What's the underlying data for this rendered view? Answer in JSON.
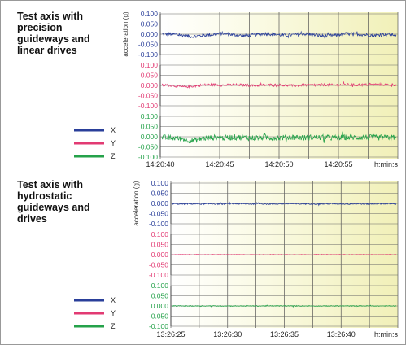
{
  "panels": [
    {
      "title": "Test axis with\nprecision\nguideways and\nlinear drives",
      "ylabel": "acceleration (g)",
      "legend": [
        {
          "label": "X",
          "color": "#2a3f9a"
        },
        {
          "label": "Y",
          "color": "#e23a73"
        },
        {
          "label": "Z",
          "color": "#25a24a"
        }
      ],
      "x_ticks": [
        "14:20:40",
        "14:20:45",
        "14:20:50",
        "14:20:55",
        "h:min:s"
      ]
    },
    {
      "title": "Test axis with\nhydrostatic\nguideways and\ndrives",
      "ylabel": "acceleration (g)",
      "legend": [
        {
          "label": "X",
          "color": "#2a3f9a"
        },
        {
          "label": "Y",
          "color": "#e23a73"
        },
        {
          "label": "Z",
          "color": "#25a24a"
        }
      ],
      "x_ticks": [
        "13:26:25",
        "13:26:30",
        "13:26:35",
        "13:26:40",
        "h:min:s"
      ]
    }
  ],
  "chart_data": [
    {
      "type": "line",
      "ylabel": "acceleration (g)",
      "x_ticks": [
        "14:20:40",
        "14:20:45",
        "14:20:50",
        "14:20:55",
        "h:min:s"
      ],
      "subplots": [
        {
          "series": "X",
          "color": "#2a3f9a",
          "ticks": [
            "0.100",
            "0.050",
            "0.000",
            "-0.050",
            "-0.100"
          ],
          "ylim": [
            -0.1,
            0.1
          ],
          "profile": [
            0.002,
            0.0,
            -0.005,
            -0.012,
            -0.006,
            -0.002,
            0.004,
            -0.003,
            -0.008,
            -0.004,
            0.002,
            0.0,
            -0.006,
            -0.003,
            0.001,
            -0.004,
            -0.01,
            -0.005,
            0.002,
            0.0,
            -0.003,
            -0.006,
            0.001,
            -0.004
          ],
          "noise": 0.008
        },
        {
          "series": "Y",
          "color": "#e23a73",
          "ticks": [
            "0.100",
            "0.050",
            "0.000",
            "-0.050",
            "-0.100"
          ],
          "ylim": [
            -0.1,
            0.1
          ],
          "profile": [
            0.002,
            0.0,
            -0.008,
            -0.004,
            0.002,
            0.004,
            0.001,
            0.003,
            0.002,
            -0.001,
            0.002,
            0.003,
            0.001,
            -0.002,
            0.002,
            0.001,
            0.003,
            0.002,
            0.004,
            0.002,
            0.003,
            0.005,
            0.004,
            0.003
          ],
          "noise": 0.006
        },
        {
          "series": "Z",
          "color": "#25a24a",
          "ticks": [
            "0.100",
            "0.050",
            "0.000",
            "-0.050",
            "-0.100"
          ],
          "ylim": [
            -0.1,
            0.1
          ],
          "profile": [
            -0.004,
            -0.006,
            -0.01,
            -0.02,
            -0.008,
            -0.004,
            -0.006,
            -0.002,
            -0.004,
            -0.006,
            -0.003,
            -0.005,
            -0.004,
            -0.002,
            -0.005,
            -0.003,
            -0.004,
            -0.006,
            -0.003,
            -0.004,
            -0.002,
            -0.005,
            -0.003,
            -0.004
          ],
          "noise": 0.014
        }
      ]
    },
    {
      "type": "line",
      "ylabel": "acceleration (g)",
      "x_ticks": [
        "13:26:25",
        "13:26:30",
        "13:26:35",
        "13:26:40",
        "h:min:s"
      ],
      "subplots": [
        {
          "series": "X",
          "color": "#2a3f9a",
          "ticks": [
            "0.100",
            "0.050",
            "0.000",
            "-0.050",
            "-0.100"
          ],
          "ylim": [
            -0.1,
            0.1
          ],
          "profile": [
            -0.002,
            -0.003,
            -0.002,
            -0.003,
            -0.002,
            -0.003,
            -0.002,
            -0.002,
            -0.003,
            -0.002,
            -0.003,
            -0.002,
            -0.002,
            -0.003,
            -0.002,
            -0.003,
            -0.002,
            -0.002,
            -0.003,
            -0.002,
            -0.003,
            -0.002,
            -0.002,
            -0.003
          ],
          "noise": 0.003
        },
        {
          "series": "Y",
          "color": "#e23a73",
          "ticks": [
            "0.100",
            "0.050",
            "0.000",
            "-0.050",
            "-0.100"
          ],
          "ylim": [
            -0.1,
            0.1
          ],
          "profile": [
            0.0,
            0.0,
            0.0,
            0.0,
            0.0,
            0.0,
            0.0,
            0.0,
            0.0,
            0.0,
            0.0,
            0.0,
            0.0,
            0.0,
            0.0,
            0.0,
            0.0,
            0.0,
            0.0,
            0.0,
            0.0,
            0.0,
            0.0,
            0.0
          ],
          "noise": 0.0015
        },
        {
          "series": "Z",
          "color": "#25a24a",
          "ticks": [
            "0.100",
            "0.050",
            "0.000",
            "-0.050",
            "-0.100"
          ],
          "ylim": [
            -0.1,
            0.1
          ],
          "profile": [
            0.0,
            0.0,
            0.0,
            0.0,
            0.0,
            0.0,
            0.0,
            0.0,
            0.0,
            0.0,
            0.0,
            0.0,
            0.0,
            0.0,
            0.0,
            0.0,
            0.0,
            0.0,
            0.0,
            0.0,
            0.0,
            0.0,
            0.0,
            0.0
          ],
          "noise": 0.002
        }
      ]
    }
  ]
}
